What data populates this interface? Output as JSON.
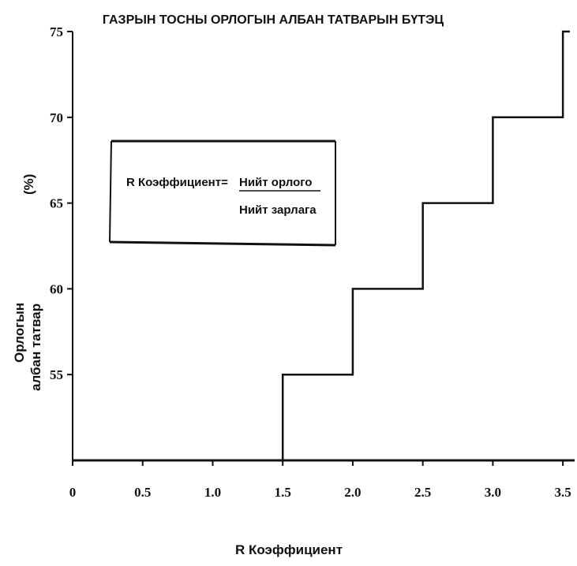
{
  "chart_data": {
    "type": "line",
    "title": "ГАЗРЫН ТОСНЫ ОРЛОГЫН АЛБАН ТАТВАРЫН БҮТЭЦ",
    "xlabel": "R Коэффициент",
    "ylabel_line1": "Орлогын",
    "ylabel_line2": "албан татвар",
    "ylabel_unit": "(%)",
    "x_ticks": [
      "0",
      "0.5",
      "1.0",
      "1.5",
      "2.0",
      "2.5",
      "3.0",
      "3.5"
    ],
    "y_ticks": [
      "55",
      "60",
      "65",
      "70",
      "75"
    ],
    "xlim": [
      0,
      3.55
    ],
    "ylim": [
      50,
      75
    ],
    "step": "post",
    "series": [
      {
        "x": [
          1.5,
          2.0,
          2.5,
          3.0,
          3.5,
          3.55
        ],
        "y": [
          55,
          60,
          65,
          70,
          75,
          75
        ]
      }
    ],
    "annotation": {
      "left": "R Коэффициент=",
      "numerator": "Нийт орлого",
      "denominator": "Нийт зарлага"
    },
    "grid": false,
    "line_color": "#111111"
  }
}
